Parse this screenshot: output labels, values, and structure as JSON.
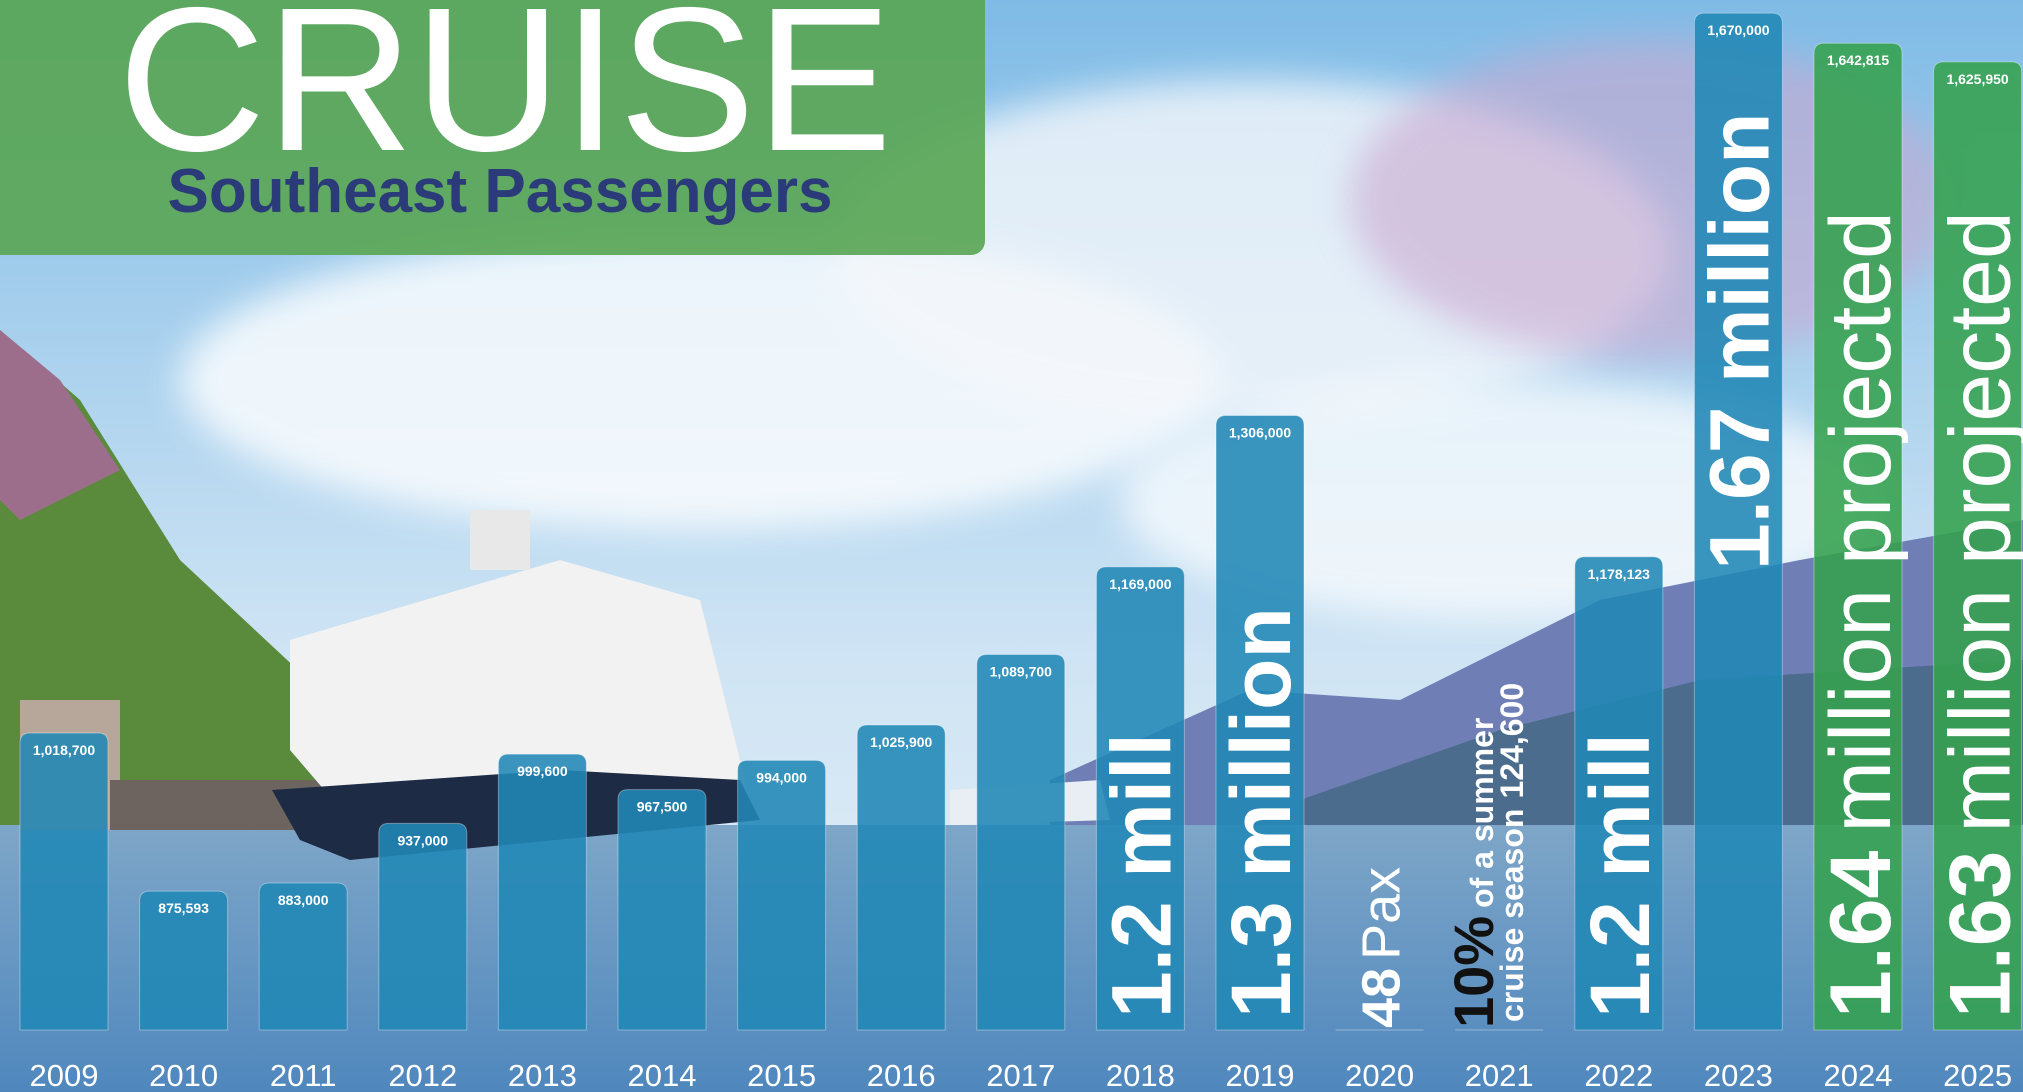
{
  "chart_data": {
    "type": "bar",
    "title": "CRUISE",
    "subtitle": "Southeast Passengers",
    "categories": [
      "2009",
      "2010",
      "2011",
      "2012",
      "2013",
      "2014",
      "2015",
      "2016",
      "2017",
      "2018",
      "2019",
      "2020",
      "2021",
      "2022",
      "2023",
      "2024",
      "2025"
    ],
    "values": [
      1018700,
      875593,
      883000,
      937000,
      999600,
      967500,
      994000,
      1025900,
      1089700,
      1169000,
      1306000,
      48,
      124600,
      1178123,
      1670000,
      1642815,
      1625950
    ],
    "value_labels": [
      "1,018,700",
      "875,593",
      "883,000",
      "937,000",
      "999,600",
      "967,500",
      "994,000",
      "1,025,900",
      "1,089,700",
      "1,169,000",
      "1,306,000",
      "48",
      "124,600",
      "1,178,123",
      "1,670,000",
      "1,642,815",
      "1,625,950"
    ],
    "colors": [
      "#2188b6",
      "#2188b6",
      "#2188b6",
      "#2188b6",
      "#2188b6",
      "#2188b6",
      "#2188b6",
      "#2188b6",
      "#2188b6",
      "#2188b6",
      "#2188b6",
      "#2188b6",
      "#2188b6",
      "#2188b6",
      "#2188b6",
      "#35a24f",
      "#35a24f"
    ],
    "ylim": [
      750000,
      1700000
    ],
    "annotations": [
      "1.2 mill",
      "1.3 million",
      "1.2 mill",
      "1.67 million",
      "1.64",
      "million projected",
      "1.63",
      "million projected",
      "Pax",
      "10%",
      "of a summer",
      "cruise season"
    ]
  }
}
